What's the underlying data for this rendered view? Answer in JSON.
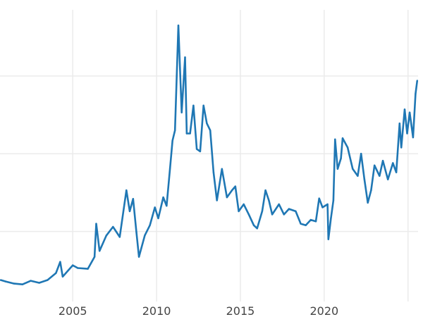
{
  "chart_data": {
    "type": "line",
    "title": "",
    "xlabel": "",
    "ylabel": "",
    "xlim": [
      2000.66,
      2025.6
    ],
    "ylim": [
      1,
      38.5
    ],
    "grid": true,
    "y_gridlines": [
      10,
      20,
      30
    ],
    "y_tick_labels_shown": false,
    "x_ticks": [
      2005,
      2010,
      2015,
      2020,
      2025
    ],
    "x_tick_labels": [
      "2005",
      "2010",
      "2015",
      "2020",
      ""
    ],
    "line_color": "#1f77b4",
    "grid_color": "#ebebeb",
    "series": [
      {
        "x": [
          2000.7,
          2001.0,
          2001.5,
          2002.0,
          2002.5,
          2003.0,
          2003.5,
          2004.0,
          2004.25,
          2004.4,
          2005.0,
          2005.3,
          2005.9,
          2006.3,
          2006.4,
          2006.6,
          2007.0,
          2007.4,
          2007.8,
          2008.2,
          2008.4,
          2008.6,
          2008.8,
          2008.95,
          2009.3,
          2009.6,
          2009.9,
          2010.1,
          2010.4,
          2010.6,
          2010.8,
          2010.95,
          2011.1,
          2011.3,
          2011.5,
          2011.7,
          2011.8,
          2012.0,
          2012.2,
          2012.4,
          2012.6,
          2012.8,
          2013.0,
          2013.2,
          2013.4,
          2013.6,
          2013.9,
          2014.2,
          2014.5,
          2014.7,
          2014.9,
          2015.2,
          2015.5,
          2015.8,
          2016.0,
          2016.3,
          2016.5,
          2016.7,
          2016.9,
          2017.3,
          2017.6,
          2017.9,
          2018.3,
          2018.6,
          2018.9,
          2019.2,
          2019.5,
          2019.7,
          2019.9,
          2020.2,
          2020.25,
          2020.4,
          2020.55,
          2020.65,
          2020.8,
          2021.0,
          2021.1,
          2021.4,
          2021.7,
          2022.0,
          2022.2,
          2022.4,
          2022.6,
          2022.8,
          2023.0,
          2023.3,
          2023.5,
          2023.8,
          2024.1,
          2024.3,
          2024.5,
          2024.6,
          2024.8,
          2024.95,
          2025.1,
          2025.3,
          2025.45,
          2025.55
        ],
        "y": [
          3.76,
          3.57,
          3.3,
          3.2,
          3.66,
          3.4,
          3.76,
          4.66,
          6.1,
          4.2,
          5.66,
          5.3,
          5.2,
          6.74,
          11.0,
          7.5,
          9.46,
          10.6,
          9.3,
          15.3,
          12.6,
          14.2,
          9.9,
          6.74,
          9.5,
          10.8,
          13.1,
          11.7,
          14.4,
          13.3,
          18.05,
          21.7,
          23.0,
          36.5,
          25.3,
          32.4,
          22.6,
          22.6,
          26.2,
          20.6,
          20.3,
          26.2,
          23.9,
          23.0,
          17.6,
          14.0,
          18.05,
          14.4,
          15.3,
          15.8,
          12.6,
          13.5,
          12.2,
          10.8,
          10.4,
          12.6,
          15.3,
          14.0,
          12.2,
          13.5,
          12.2,
          12.9,
          12.6,
          11.0,
          10.8,
          11.5,
          11.3,
          14.25,
          13.1,
          13.5,
          9.0,
          11.7,
          14.0,
          21.85,
          18.05,
          19.4,
          22.0,
          20.8,
          18.05,
          17.15,
          20.0,
          16.7,
          13.7,
          15.3,
          18.5,
          17.15,
          19.1,
          16.7,
          18.8,
          17.6,
          23.9,
          20.8,
          25.7,
          22.6,
          25.3,
          22.1,
          27.7,
          29.4
        ]
      }
    ]
  }
}
